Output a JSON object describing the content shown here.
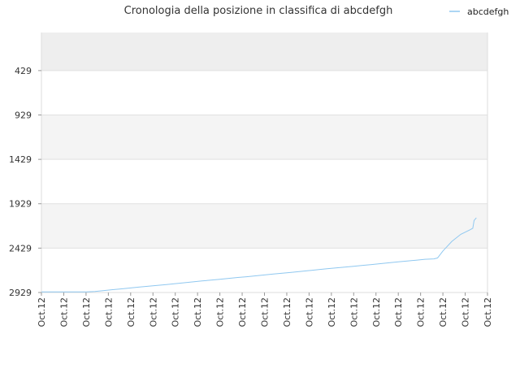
{
  "chart_data": {
    "type": "line",
    "title": "Cronologia della posizione in classifica di abcdefgh",
    "xlabel": "",
    "ylabel": "",
    "y_reversed": true,
    "ylim": [
      2929,
      0
    ],
    "y_ticks": [
      429,
      929,
      1429,
      1929,
      2429,
      2929
    ],
    "x_tick_labels": [
      "Oct.12",
      "Oct.12",
      "Oct.12",
      "Oct.12",
      "Oct.12",
      "Oct.12",
      "Oct.12",
      "Oct.12",
      "Oct.12",
      "Oct.12",
      "Oct.12",
      "Oct.12",
      "Oct.12",
      "Oct.12",
      "Oct.12",
      "Oct.12",
      "Oct.12",
      "Oct.12",
      "Oct.12",
      "Oct.12",
      "Oct.12"
    ],
    "grid": true,
    "legend_position": "top-right",
    "colors": {
      "line": "#90c8f0",
      "band_dark": "#eeeeee",
      "band_light": "#f4f4f4",
      "grid": "#e0e0e0",
      "axis": "#dddddd"
    },
    "series": [
      {
        "name": "abcdefgh",
        "x": [
          0,
          2,
          4,
          6,
          8,
          10,
          12,
          14,
          16,
          18,
          20,
          22,
          24,
          26,
          28,
          30,
          32,
          34,
          36,
          38,
          40,
          42,
          44,
          46,
          48,
          50,
          52,
          54,
          56,
          58,
          60,
          62,
          64,
          66,
          68,
          70,
          72,
          74,
          76,
          78,
          80,
          82,
          84,
          86,
          88,
          88.8,
          90,
          92,
          94,
          96,
          96.7,
          97,
          97.5
        ],
        "y": [
          2922,
          2922,
          2922,
          2922,
          2922,
          2922,
          2917,
          2907,
          2897,
          2888,
          2878,
          2868,
          2858,
          2848,
          2839,
          2829,
          2819,
          2809,
          2799,
          2790,
          2780,
          2770,
          2760,
          2751,
          2741,
          2731,
          2721,
          2711,
          2702,
          2692,
          2682,
          2672,
          2662,
          2653,
          2643,
          2633,
          2623,
          2614,
          2604,
          2594,
          2584,
          2574,
          2565,
          2555,
          2550,
          2540,
          2461,
          2353,
          2274,
          2225,
          2205,
          2117,
          2088
        ]
      }
    ]
  }
}
